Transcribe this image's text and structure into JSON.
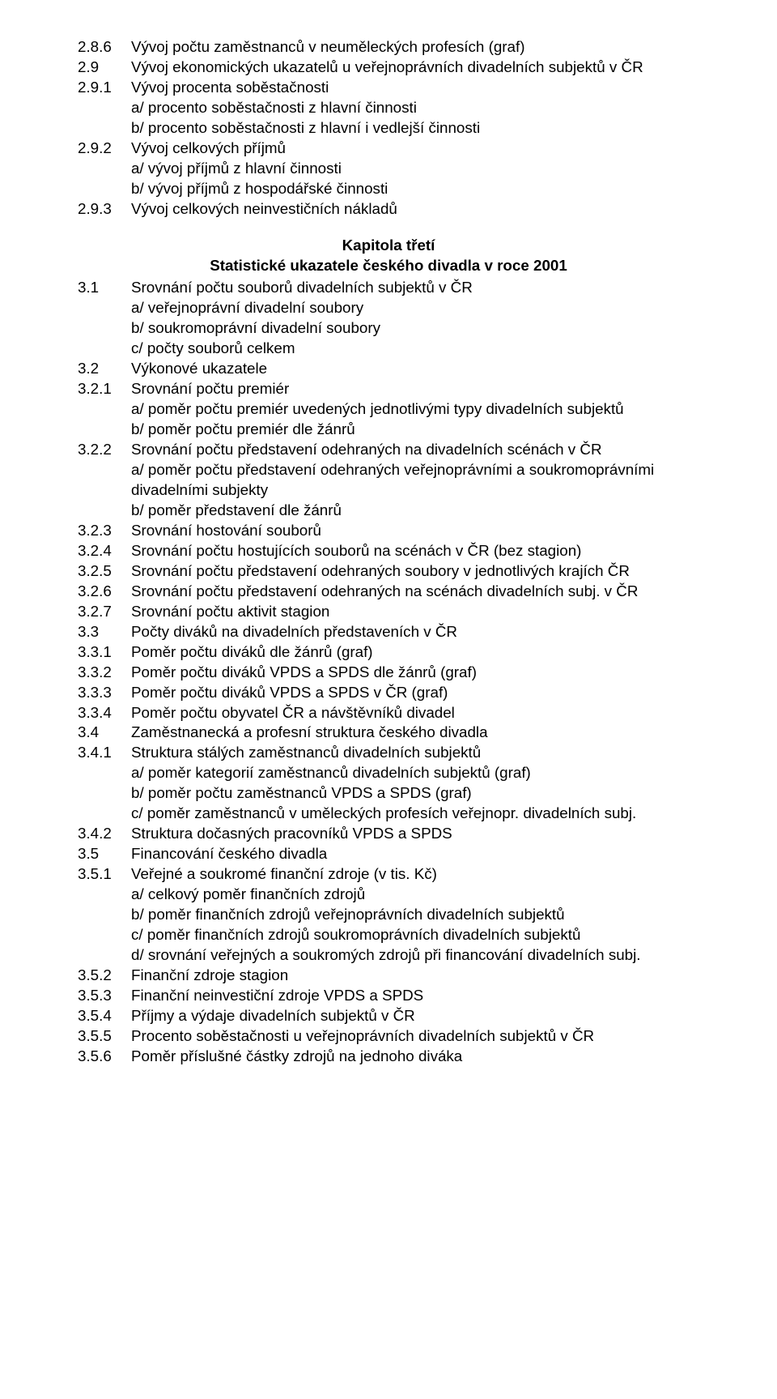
{
  "top": [
    {
      "num": "2.8.6",
      "txt": "Vývoj počtu zaměstnanců v neuměleckých profesích (graf)"
    },
    {
      "num": "2.9",
      "txt": "Vývoj ekonomických ukazatelů u veřejnoprávních divadelních subjektů v ČR"
    },
    {
      "num": "2.9.1",
      "txt": "Vývoj procenta soběstačnosti",
      "subs": [
        "a/ procento soběstačnosti z hlavní činnosti",
        "b/ procento soběstačnosti z hlavní i vedlejší činnosti"
      ]
    },
    {
      "num": "2.9.2",
      "txt": "Vývoj celkových příjmů",
      "subs": [
        "a/ vývoj příjmů z hlavní činnosti",
        "b/ vývoj příjmů z hospodářské činnosti"
      ]
    },
    {
      "num": "2.9.3",
      "txt": "Vývoj celkových neinvestičních nákladů"
    }
  ],
  "chapter": "Kapitola třetí",
  "chapter2": "Statistické ukazatele českého divadla v roce 2001",
  "bottom": [
    {
      "num": "3.1",
      "txt": "Srovnání počtu souborů divadelních subjektů v ČR",
      "subs": [
        "a/ veřejnoprávní divadelní soubory",
        "b/ soukromoprávní divadelní soubory",
        "c/ počty souborů celkem"
      ]
    },
    {
      "num": "3.2",
      "txt": "Výkonové ukazatele"
    },
    {
      "num": "3.2.1",
      "txt": "Srovnání počtu premiér",
      "subs": [
        "a/ poměr počtu premiér uvedených jednotlivými typy divadelních subjektů",
        "b/ poměr počtu premiér dle žánrů"
      ]
    },
    {
      "num": "3.2.2",
      "txt": "Srovnání počtu představení odehraných na divadelních scénách v ČR",
      "subs": [
        "a/ poměr počtu představení odehraných veřejnoprávními a soukromoprávními divadelními subjekty",
        "b/ poměr představení dle žánrů"
      ]
    },
    {
      "num": "3.2.3",
      "txt": "Srovnání hostování souborů"
    },
    {
      "num": "3.2.4",
      "txt": "Srovnání počtu hostujících souborů na scénách v ČR (bez stagion)"
    },
    {
      "num": "3.2.5",
      "txt": "Srovnání počtu představení odehraných soubory v jednotlivých krajích ČR"
    },
    {
      "num": "3.2.6",
      "txt": "Srovnání počtu představení odehraných na scénách divadelních subj. v ČR"
    },
    {
      "num": "3.2.7",
      "txt": "Srovnání počtu aktivit stagion"
    },
    {
      "num": "3.3",
      "txt": "Počty diváků na divadelních představeních v ČR"
    },
    {
      "num": "3.3.1",
      "txt": "Poměr počtu diváků dle žánrů (graf)"
    },
    {
      "num": "3.3.2",
      "txt": "Poměr počtu diváků VPDS a SPDS dle žánrů (graf)"
    },
    {
      "num": "3.3.3",
      "txt": "Poměr počtu diváků VPDS a SPDS v ČR (graf)"
    },
    {
      "num": "3.3.4",
      "txt": "Poměr počtu obyvatel ČR a návštěvníků divadel"
    },
    {
      "num": "3.4",
      "txt": "Zaměstnanecká a profesní struktura českého divadla"
    },
    {
      "num": "3.4.1",
      "txt": "Struktura stálých zaměstnanců divadelních subjektů",
      "subs": [
        "a/ poměr kategorií zaměstnanců divadelních subjektů (graf)",
        "b/ poměr počtu zaměstnanců VPDS a SPDS (graf)",
        "c/ poměr zaměstnanců v uměleckých profesích veřejnopr. divadelních subj."
      ]
    },
    {
      "num": "3.4.2",
      "txt": "Struktura dočasných pracovníků VPDS a SPDS"
    },
    {
      "num": "3.5",
      "txt": "Financování českého divadla"
    },
    {
      "num": "3.5.1",
      "txt": "Veřejné a soukromé finanční zdroje (v tis. Kč)",
      "subs": [
        "a/ celkový poměr finančních zdrojů",
        "b/ poměr finančních zdrojů veřejnoprávních divadelních subjektů",
        "c/ poměr finančních zdrojů soukromoprávních divadelních subjektů",
        "d/ srovnání veřejných a soukromých zdrojů při financování divadelních subj."
      ]
    },
    {
      "num": "3.5.2",
      "txt": "Finanční zdroje stagion"
    },
    {
      "num": "3.5.3",
      "txt": "Finanční neinvestiční zdroje VPDS a SPDS"
    },
    {
      "num": "3.5.4",
      "txt": "Příjmy a výdaje divadelních subjektů v ČR"
    },
    {
      "num": "3.5.5",
      "txt": "Procento soběstačnosti u veřejnoprávních divadelních subjektů v ČR"
    },
    {
      "num": "3.5.6",
      "txt": "Poměr příslušné částky zdrojů na jednoho diváka"
    }
  ]
}
